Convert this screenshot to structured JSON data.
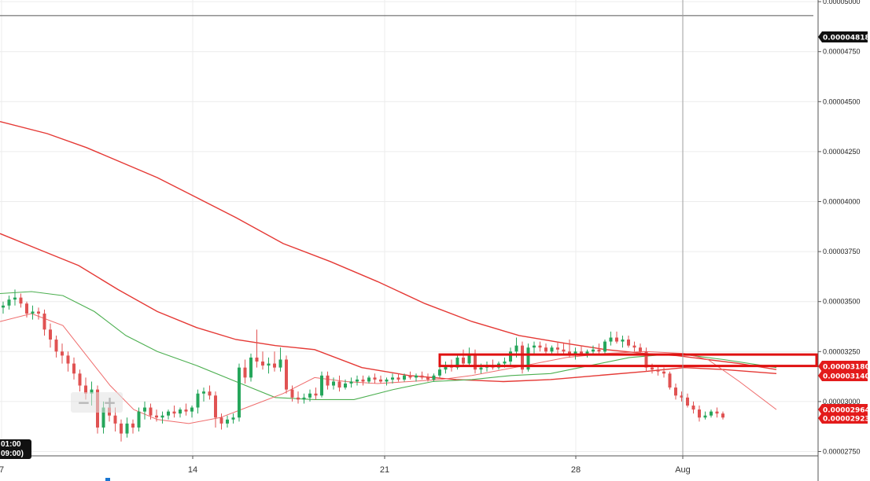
{
  "chart_data": {
    "type": "candlestick",
    "y_axis": {
      "range": [
        2.72e-05,
        5e-05
      ],
      "ticks": [
        "0.00005000",
        "0.00004750",
        "0.00004500",
        "0.00004250",
        "0.00004000",
        "0.00003750",
        "0.00003500",
        "0.00003250",
        "0.00003000",
        "0.00002750"
      ]
    },
    "x_axis": {
      "ticks": [
        "7",
        "14",
        "21",
        "28",
        "Aug"
      ]
    },
    "price_badges": [
      {
        "text": "0.00004818",
        "value": 4.818e-05,
        "color": "#111111"
      },
      {
        "text": "0.00003180",
        "value": 3.18e-05,
        "color": "#e31b1b"
      },
      {
        "text": "0.00003140",
        "value": 3.14e-05,
        "color": "#e31b1b"
      },
      {
        "text": "0.00002964",
        "value": 2.964e-05,
        "color": "#e31b1b"
      },
      {
        "text": "0.00002923",
        "value": 2.923e-05,
        "color": "#e31b1b"
      }
    ],
    "reference_line": 4.93e-05,
    "resistance_zone": {
      "low": 3.178e-05,
      "high": 3.235e-05
    },
    "crosshair_time": [
      "01:00",
      "09:00)"
    ],
    "candles": [
      [
        3.47,
        3.5,
        3.44,
        3.48
      ],
      [
        3.48,
        3.53,
        3.46,
        3.51
      ],
      [
        3.51,
        3.56,
        3.48,
        3.52
      ],
      [
        3.52,
        3.54,
        3.47,
        3.49
      ],
      [
        3.49,
        3.5,
        3.42,
        3.44
      ],
      [
        3.44,
        3.48,
        3.41,
        3.45
      ],
      [
        3.45,
        3.47,
        3.41,
        3.44
      ],
      [
        3.44,
        3.46,
        3.33,
        3.36
      ],
      [
        3.36,
        3.39,
        3.27,
        3.31
      ],
      [
        3.31,
        3.33,
        3.22,
        3.25
      ],
      [
        3.25,
        3.29,
        3.19,
        3.23
      ],
      [
        3.23,
        3.25,
        3.15,
        3.19
      ],
      [
        3.19,
        3.22,
        3.11,
        3.14
      ],
      [
        3.14,
        3.16,
        3.05,
        3.08
      ],
      [
        3.08,
        3.12,
        3.01,
        3.04
      ],
      [
        3.04,
        3.1,
        2.98,
        3.06
      ],
      [
        3.06,
        3.08,
        2.84,
        2.87
      ],
      [
        2.87,
        3.0,
        2.84,
        2.97
      ],
      [
        2.97,
        3.0,
        2.9,
        2.93
      ],
      [
        2.93,
        2.97,
        2.85,
        2.89
      ],
      [
        2.89,
        2.91,
        2.8,
        2.84
      ],
      [
        2.84,
        2.92,
        2.82,
        2.89
      ],
      [
        2.89,
        2.91,
        2.84,
        2.87
      ],
      [
        2.87,
        2.97,
        2.85,
        2.95
      ],
      [
        2.95,
        3.0,
        2.91,
        2.97
      ],
      [
        2.97,
        2.99,
        2.91,
        2.93
      ],
      [
        2.93,
        2.96,
        2.9,
        2.92
      ],
      [
        2.92,
        2.95,
        2.89,
        2.93
      ],
      [
        2.93,
        2.96,
        2.91,
        2.95
      ],
      [
        2.95,
        2.98,
        2.92,
        2.94
      ],
      [
        2.94,
        2.97,
        2.92,
        2.96
      ],
      [
        2.96,
        2.99,
        2.93,
        2.95
      ],
      [
        2.95,
        2.98,
        2.92,
        2.97
      ],
      [
        2.97,
        3.06,
        2.94,
        3.04
      ],
      [
        3.04,
        3.07,
        3.0,
        3.05
      ],
      [
        3.05,
        3.08,
        3.01,
        3.03
      ],
      [
        3.03,
        3.05,
        2.87,
        2.92
      ],
      [
        2.92,
        2.94,
        2.86,
        2.89
      ],
      [
        2.89,
        2.93,
        2.87,
        2.91
      ],
      [
        2.91,
        2.94,
        2.89,
        2.92
      ],
      [
        2.92,
        3.19,
        2.9,
        3.17
      ],
      [
        3.17,
        3.21,
        3.09,
        3.12
      ],
      [
        3.12,
        3.24,
        3.1,
        3.22
      ],
      [
        3.22,
        3.36,
        3.17,
        3.2
      ],
      [
        3.2,
        3.25,
        3.16,
        3.18
      ],
      [
        3.18,
        3.22,
        3.14,
        3.19
      ],
      [
        3.19,
        3.25,
        3.15,
        3.17
      ],
      [
        3.17,
        3.27,
        3.15,
        3.21
      ],
      [
        3.21,
        3.23,
        3.04,
        3.06
      ],
      [
        3.06,
        3.08,
        3.0,
        3.02
      ],
      [
        3.02,
        3.05,
        2.99,
        3.01
      ],
      [
        3.01,
        3.04,
        2.99,
        3.02
      ],
      [
        3.02,
        3.06,
        3.0,
        3.04
      ],
      [
        3.04,
        3.07,
        3.01,
        3.03
      ],
      [
        3.03,
        3.15,
        3.02,
        3.13
      ],
      [
        3.13,
        3.15,
        3.06,
        3.08
      ],
      [
        3.08,
        3.12,
        3.06,
        3.1
      ],
      [
        3.1,
        3.13,
        3.05,
        3.07
      ],
      [
        3.07,
        3.11,
        3.06,
        3.09
      ],
      [
        3.09,
        3.12,
        3.07,
        3.1
      ],
      [
        3.1,
        3.13,
        3.08,
        3.11
      ],
      [
        3.11,
        3.13,
        3.08,
        3.1
      ],
      [
        3.1,
        3.13,
        3.09,
        3.12
      ],
      [
        3.12,
        3.14,
        3.09,
        3.11
      ],
      [
        3.11,
        3.13,
        3.09,
        3.1
      ],
      [
        3.1,
        3.12,
        3.08,
        3.11
      ],
      [
        3.11,
        3.14,
        3.09,
        3.12
      ],
      [
        3.12,
        3.14,
        3.1,
        3.11
      ],
      [
        3.11,
        3.14,
        3.1,
        3.13
      ],
      [
        3.13,
        3.15,
        3.11,
        3.12
      ],
      [
        3.12,
        3.14,
        3.1,
        3.13
      ],
      [
        3.13,
        3.15,
        3.11,
        3.12
      ],
      [
        3.12,
        3.14,
        3.1,
        3.11
      ],
      [
        3.11,
        3.14,
        3.1,
        3.13
      ],
      [
        3.13,
        3.18,
        3.12,
        3.16
      ],
      [
        3.16,
        3.2,
        3.14,
        3.18
      ],
      [
        3.18,
        3.21,
        3.15,
        3.17
      ],
      [
        3.17,
        3.23,
        3.16,
        3.22
      ],
      [
        3.22,
        3.26,
        3.18,
        3.19
      ],
      [
        3.19,
        3.27,
        3.18,
        3.24
      ],
      [
        3.24,
        3.26,
        3.14,
        3.16
      ],
      [
        3.16,
        3.19,
        3.14,
        3.17
      ],
      [
        3.17,
        3.2,
        3.15,
        3.18
      ],
      [
        3.18,
        3.21,
        3.16,
        3.17
      ],
      [
        3.17,
        3.2,
        3.16,
        3.19
      ],
      [
        3.19,
        3.22,
        3.17,
        3.2
      ],
      [
        3.2,
        3.27,
        3.18,
        3.25
      ],
      [
        3.25,
        3.32,
        3.22,
        3.28
      ],
      [
        3.28,
        3.3,
        3.14,
        3.16
      ],
      [
        3.16,
        3.29,
        3.15,
        3.27
      ],
      [
        3.27,
        3.3,
        3.24,
        3.28
      ],
      [
        3.28,
        3.3,
        3.25,
        3.27
      ],
      [
        3.27,
        3.29,
        3.24,
        3.25
      ],
      [
        3.25,
        3.28,
        3.23,
        3.27
      ],
      [
        3.27,
        3.3,
        3.24,
        3.26
      ],
      [
        3.26,
        3.29,
        3.23,
        3.25
      ],
      [
        3.25,
        3.31,
        3.22,
        3.23
      ],
      [
        3.23,
        3.27,
        3.21,
        3.25
      ],
      [
        3.25,
        3.28,
        3.23,
        3.24
      ],
      [
        3.24,
        3.26,
        3.22,
        3.25
      ],
      [
        3.25,
        3.28,
        3.23,
        3.26
      ],
      [
        3.26,
        3.29,
        3.24,
        3.25
      ],
      [
        3.25,
        3.31,
        3.24,
        3.3
      ],
      [
        3.3,
        3.35,
        3.28,
        3.32
      ],
      [
        3.32,
        3.35,
        3.29,
        3.3
      ],
      [
        3.3,
        3.33,
        3.27,
        3.31
      ],
      [
        3.31,
        3.33,
        3.27,
        3.28
      ],
      [
        3.28,
        3.3,
        3.25,
        3.27
      ],
      [
        3.27,
        3.29,
        3.24,
        3.25
      ],
      [
        3.25,
        3.27,
        3.15,
        3.17
      ],
      [
        3.17,
        3.19,
        3.14,
        3.16
      ],
      [
        3.16,
        3.18,
        3.13,
        3.15
      ],
      [
        3.15,
        3.17,
        3.12,
        3.14
      ],
      [
        3.14,
        3.15,
        3.06,
        3.07
      ],
      [
        3.07,
        3.09,
        3.01,
        3.03
      ],
      [
        3.03,
        3.05,
        3.0,
        3.02
      ],
      [
        3.02,
        3.04,
        2.97,
        2.98
      ],
      [
        2.98,
        3.0,
        2.94,
        2.96
      ],
      [
        2.96,
        2.98,
        2.9,
        2.92
      ],
      [
        2.92,
        2.95,
        2.91,
        2.93
      ],
      [
        2.93,
        2.96,
        2.92,
        2.95
      ],
      [
        2.95,
        2.97,
        2.92,
        2.94
      ],
      [
        2.94,
        2.95,
        2.91,
        2.92
      ]
    ],
    "moving_averages": [
      {
        "color": "#e53935",
        "width": 1.4,
        "points": [
          [
            0,
            4.4
          ],
          [
            60,
            4.34
          ],
          [
            110,
            4.27
          ],
          [
            200,
            4.12
          ],
          [
            250,
            4.02
          ],
          [
            300,
            3.92
          ],
          [
            360,
            3.79
          ],
          [
            420,
            3.7
          ],
          [
            480,
            3.6
          ],
          [
            540,
            3.49
          ],
          [
            600,
            3.4
          ],
          [
            660,
            3.33
          ],
          [
            720,
            3.29
          ],
          [
            770,
            3.26
          ],
          [
            820,
            3.24
          ],
          [
            860,
            3.23
          ],
          [
            900,
            3.21
          ],
          [
            940,
            3.19
          ],
          [
            987,
            3.16
          ]
        ]
      },
      {
        "color": "#e53935",
        "width": 1.4,
        "points": [
          [
            0,
            3.84
          ],
          [
            50,
            3.76
          ],
          [
            100,
            3.68
          ],
          [
            150,
            3.56
          ],
          [
            200,
            3.45
          ],
          [
            250,
            3.37
          ],
          [
            300,
            3.31
          ],
          [
            350,
            3.28
          ],
          [
            400,
            3.26
          ],
          [
            460,
            3.17
          ],
          [
            520,
            3.13
          ],
          [
            580,
            3.11
          ],
          [
            640,
            3.1
          ],
          [
            700,
            3.11
          ],
          [
            760,
            3.13
          ],
          [
            820,
            3.15
          ],
          [
            870,
            3.17
          ],
          [
            920,
            3.16
          ],
          [
            987,
            3.14
          ]
        ]
      },
      {
        "color": "#4caf50",
        "width": 1.1,
        "points": [
          [
            0,
            3.54
          ],
          [
            40,
            3.55
          ],
          [
            80,
            3.53
          ],
          [
            120,
            3.45
          ],
          [
            160,
            3.33
          ],
          [
            200,
            3.25
          ],
          [
            250,
            3.18
          ],
          [
            300,
            3.1
          ],
          [
            350,
            3.02
          ],
          [
            400,
            3.01
          ],
          [
            450,
            3.01
          ],
          [
            500,
            3.06
          ],
          [
            550,
            3.1
          ],
          [
            600,
            3.11
          ],
          [
            650,
            3.13
          ],
          [
            700,
            3.14
          ],
          [
            750,
            3.18
          ],
          [
            800,
            3.22
          ],
          [
            860,
            3.24
          ],
          [
            920,
            3.21
          ],
          [
            987,
            3.17
          ]
        ]
      },
      {
        "color": "#ef6c6c",
        "width": 1.0,
        "points": [
          [
            0,
            3.4
          ],
          [
            40,
            3.44
          ],
          [
            80,
            3.38
          ],
          [
            110,
            3.23
          ],
          [
            140,
            3.08
          ],
          [
            170,
            2.96
          ],
          [
            200,
            2.91
          ],
          [
            240,
            2.89
          ],
          [
            280,
            2.92
          ],
          [
            320,
            2.98
          ],
          [
            360,
            3.04
          ],
          [
            400,
            3.12
          ],
          [
            440,
            3.1
          ],
          [
            480,
            3.09
          ],
          [
            520,
            3.1
          ],
          [
            560,
            3.11
          ],
          [
            600,
            3.13
          ],
          [
            640,
            3.16
          ],
          [
            680,
            3.19
          ],
          [
            720,
            3.22
          ],
          [
            770,
            3.24
          ],
          [
            820,
            3.25
          ],
          [
            870,
            3.24
          ],
          [
            900,
            3.21
          ],
          [
            940,
            3.1
          ],
          [
            987,
            2.96
          ]
        ]
      }
    ]
  }
}
